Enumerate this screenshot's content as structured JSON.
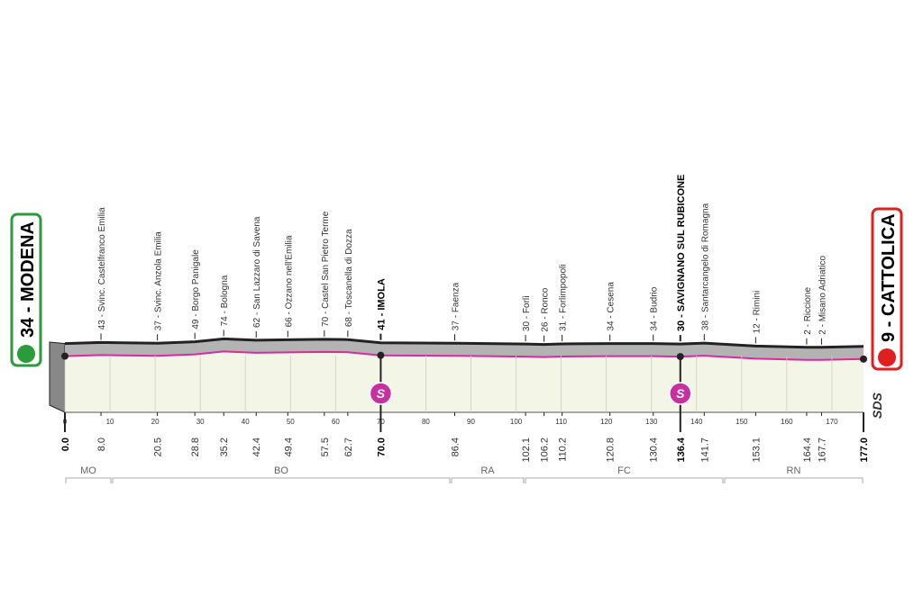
{
  "start": {
    "label": "34 - MODENA",
    "km": "0.0"
  },
  "finish": {
    "label": "9 - CATTOLICA",
    "km": "177.0"
  },
  "waypoints": [
    {
      "label": "43 - Svinc. Castelfranco Emilia",
      "km": "8.0"
    },
    {
      "label": "37 - Svinc. Anzola Emilia",
      "km": "20.5"
    },
    {
      "label": "49 - Borgo Panigale",
      "km": "28.8"
    },
    {
      "label": "74 - Bologna",
      "km": "35.2"
    },
    {
      "label": "62 - San Lazzaro di Savena",
      "km": "42.4"
    },
    {
      "label": "66 - Ozzano nell'Emilia",
      "km": "49.4"
    },
    {
      "label": "70 - Castel San Pietro Terme",
      "km": "57.5"
    },
    {
      "label": "68 - Toscanella di Dozza",
      "km": "62.7"
    },
    {
      "label": "41 - IMOLA",
      "km": "70.0",
      "sprint": true
    },
    {
      "label": "37 - Faenza",
      "km": "86.4"
    },
    {
      "label": "30 - Forlì",
      "km": "102.1"
    },
    {
      "label": "26 - Ronco",
      "km": "106.2"
    },
    {
      "label": "31 - Forlimpopoli",
      "km": "110.2"
    },
    {
      "label": "34 - Cesena",
      "km": "120.8"
    },
    {
      "label": "34 - Budrio",
      "km": "130.4"
    },
    {
      "label": "30 - SAVIGNANO SUL RUBICONE",
      "km": "136.4",
      "sprint": true
    },
    {
      "label": "38 - Santarcangelo di Romagna",
      "km": "141.7"
    },
    {
      "label": "12 - Rimini",
      "km": "153.1"
    },
    {
      "label": "2 - Riccione",
      "km": "164.4"
    },
    {
      "label": "2 - Misano Adriatico",
      "km": "167.7"
    }
  ],
  "km_ticks": [
    0,
    10,
    20,
    30,
    40,
    50,
    60,
    70,
    80,
    90,
    100,
    110,
    120,
    130,
    140,
    150,
    160,
    170
  ],
  "sprint_symbol": "S",
  "provinces": [
    "MO",
    "BO",
    "RA",
    "FC",
    "RN"
  ],
  "logo": "SDS"
}
